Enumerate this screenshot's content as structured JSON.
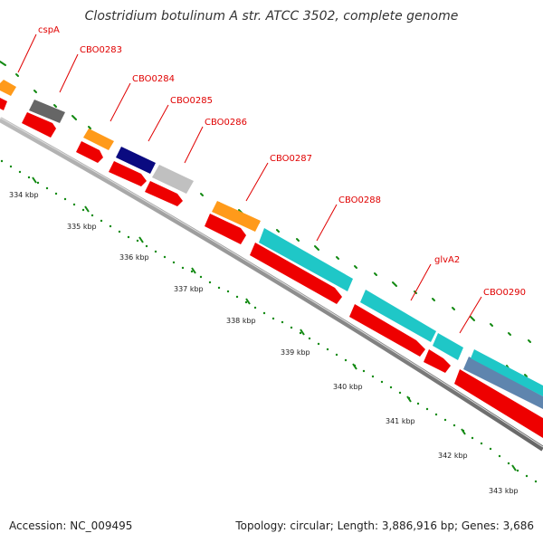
{
  "title": "Clostridium botulinum A str. ATCC 3502, complete genome",
  "footer": {
    "accession": "Accession: NC_009495",
    "summary": "Topology: circular; Length: 3,886,916 bp; Genes: 3,686"
  },
  "colors": {
    "cds_red": "#ee0000",
    "orange": "#ff9a1a",
    "dark_gray": "#666666",
    "navy": "#0a0a80",
    "light_gray": "#c0c0c0",
    "cyan": "#1fc7c7",
    "steel_blue": "#5f85ae",
    "tick_green": "#138a13",
    "backbone": "#888888"
  },
  "gene_labels": [
    "cspA",
    "CBO0283",
    "CBO0284",
    "CBO0285",
    "CBO0286",
    "CBO0287",
    "CBO0288",
    "glvA2",
    "CBO0290"
  ],
  "kbp_labels": [
    "334 kbp",
    "335 kbp",
    "336 kbp",
    "337 kbp",
    "338 kbp",
    "339 kbp",
    "340 kbp",
    "341 kbp",
    "342 kbp",
    "343 kbp"
  ]
}
